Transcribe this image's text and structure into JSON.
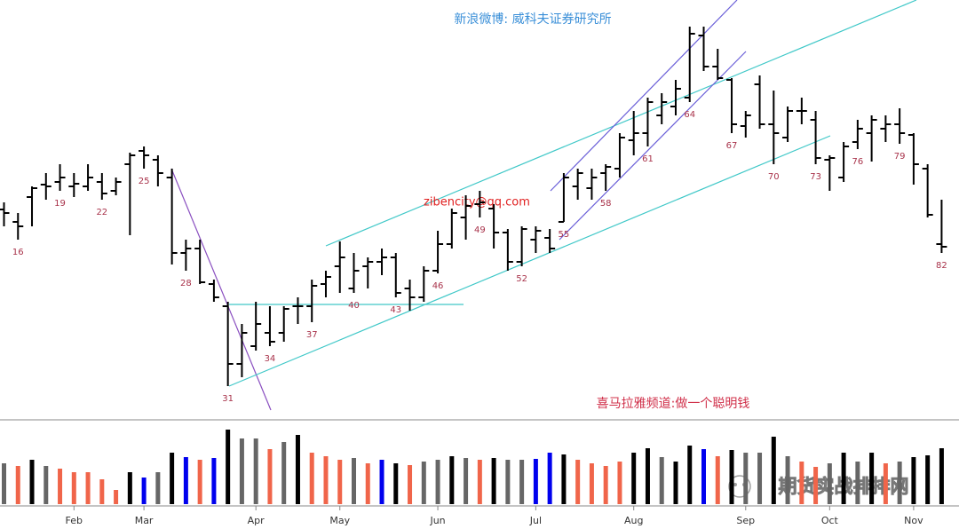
{
  "chart_data": {
    "type": "ohlc",
    "title": "新浪微博: 威科夫证券研究所",
    "annotations": [
      "zibencity@qq.com",
      "喜马拉雅频道:做一个聪明钱"
    ],
    "watermark": "期货实战排排网",
    "categories": [
      null,
      "16",
      null,
      null,
      "19",
      null,
      null,
      "22",
      null,
      null,
      "25",
      null,
      null,
      "28",
      null,
      null,
      "31",
      null,
      null,
      "34",
      null,
      null,
      "37",
      null,
      null,
      "40",
      null,
      null,
      "43",
      null,
      null,
      "46",
      null,
      null,
      "49",
      null,
      null,
      "52",
      null,
      null,
      "55",
      null,
      null,
      "58",
      null,
      null,
      "61",
      null,
      null,
      "64",
      null,
      null,
      "67",
      null,
      null,
      "70",
      null,
      null,
      "73",
      null,
      null,
      "76",
      null,
      null,
      "79",
      null,
      null,
      "82"
    ],
    "month_ticks": [
      {
        "value": 5,
        "label": "Feb"
      },
      {
        "value": 10,
        "label": "Mar"
      },
      {
        "value": 18,
        "label": "Apr"
      },
      {
        "value": 24,
        "label": "May"
      },
      {
        "value": 31,
        "label": "Jun"
      },
      {
        "value": 38,
        "label": "Jul"
      },
      {
        "value": 45,
        "label": "Aug"
      },
      {
        "value": 53,
        "label": "Sep"
      },
      {
        "value": 59,
        "label": "Oct"
      },
      {
        "value": 65,
        "label": "Nov"
      }
    ],
    "open": [
      229,
      215,
      243,
      257,
      260,
      255,
      255,
      260,
      250,
      280,
      295,
      285,
      265,
      180,
      185,
      145,
      120,
      55,
      75,
      90,
      90,
      120,
      120,
      145,
      165,
      140,
      165,
      170,
      175,
      140,
      130,
      160,
      190,
      220,
      235,
      230,
      203,
      170,
      195,
      197,
      215,
      255,
      253,
      270,
      275,
      307,
      315,
      335,
      345,
      355,
      425,
      390,
      375,
      323,
      370,
      325,
      310,
      340,
      330,
      285,
      265,
      305,
      315,
      320,
      325,
      313,
      275,
      190
    ],
    "high": [
      237,
      225,
      255,
      270,
      280,
      270,
      280,
      270,
      265,
      293,
      300,
      290,
      275,
      195,
      195,
      150,
      125,
      100,
      125,
      120,
      120,
      130,
      150,
      160,
      193,
      180,
      175,
      185,
      180,
      150,
      165,
      205,
      230,
      245,
      250,
      235,
      207,
      210,
      210,
      207,
      270,
      275,
      275,
      280,
      315,
      340,
      355,
      360,
      375,
      435,
      435,
      410,
      377,
      340,
      380,
      363,
      345,
      355,
      340,
      290,
      305,
      330,
      335,
      335,
      343,
      315,
      280,
      240
    ],
    "low": [
      210,
      195,
      210,
      240,
      250,
      243,
      250,
      240,
      245,
      200,
      275,
      255,
      167,
      160,
      145,
      125,
      30,
      40,
      70,
      75,
      80,
      100,
      102,
      130,
      135,
      135,
      140,
      155,
      130,
      115,
      125,
      157,
      185,
      195,
      220,
      185,
      160,
      165,
      180,
      180,
      215,
      240,
      240,
      250,
      265,
      290,
      300,
      325,
      335,
      350,
      385,
      375,
      315,
      310,
      320,
      280,
      305,
      325,
      280,
      250,
      260,
      297,
      283,
      305,
      303,
      257,
      220,
      180
    ],
    "close": [
      225,
      210,
      253,
      255,
      265,
      258,
      265,
      247,
      260,
      290,
      290,
      270,
      180,
      185,
      147,
      130,
      55,
      90,
      100,
      80,
      117,
      120,
      143,
      153,
      175,
      160,
      170,
      175,
      135,
      130,
      160,
      190,
      225,
      233,
      237,
      203,
      170,
      207,
      205,
      185,
      265,
      270,
      265,
      277,
      310,
      315,
      350,
      350,
      365,
      427,
      390,
      377,
      325,
      335,
      325,
      315,
      340,
      340,
      287,
      287,
      300,
      320,
      330,
      325,
      315,
      280,
      223,
      187
    ],
    "ylim": [
      0,
      465
    ],
    "volume": [
      46,
      43,
      50,
      43,
      40,
      36,
      36,
      28,
      16,
      36,
      30,
      36,
      58,
      53,
      50,
      52,
      84,
      74,
      74,
      62,
      70,
      78,
      58,
      54,
      50,
      52,
      46,
      50,
      46,
      44,
      48,
      50,
      54,
      52,
      50,
      52,
      50,
      50,
      51,
      58,
      56,
      50,
      46,
      43,
      48,
      58,
      63,
      53,
      48,
      66,
      62,
      54,
      61,
      58,
      58,
      76,
      54,
      48,
      42,
      46,
      58,
      48,
      58,
      46,
      48,
      53,
      55,
      63
    ],
    "volume_lim": [
      0,
      95
    ],
    "volume_colors": [
      "#666666",
      "#f0654a",
      "#000000",
      "#666666",
      "#f0654a",
      "#f0654a",
      "#f0654a",
      "#f0654a",
      "#f0654a",
      "#000000",
      "#0000ee",
      "#666666",
      "#000000",
      "#0000ee",
      "#f0654a",
      "#0000ee",
      "#000000",
      "#666666",
      "#666666",
      "#f0654a",
      "#666666",
      "#000000",
      "#f0654a",
      "#f0654a",
      "#f0654a",
      "#666666",
      "#f0654a",
      "#0000ee",
      "#000000",
      "#f0654a",
      "#666666",
      "#666666",
      "#000000",
      "#666666",
      "#f0654a",
      "#000000",
      "#666666",
      "#666666",
      "#0000ee",
      "#0000ee",
      "#000000",
      "#f0654a",
      "#f0654a",
      "#f0654a",
      "#f0654a",
      "#000000",
      "#000000",
      "#666666",
      "#000000",
      "#000000",
      "#0000ee",
      "#f0654a",
      "#000000",
      "#666666",
      "#666666",
      "#000000",
      "#666666",
      "#f0654a",
      "#f0654a",
      "#666666",
      "#000000",
      "#666666",
      "#000000",
      "#f0654a",
      "#666666",
      "#000000",
      "#000000",
      "#000000"
    ]
  }
}
